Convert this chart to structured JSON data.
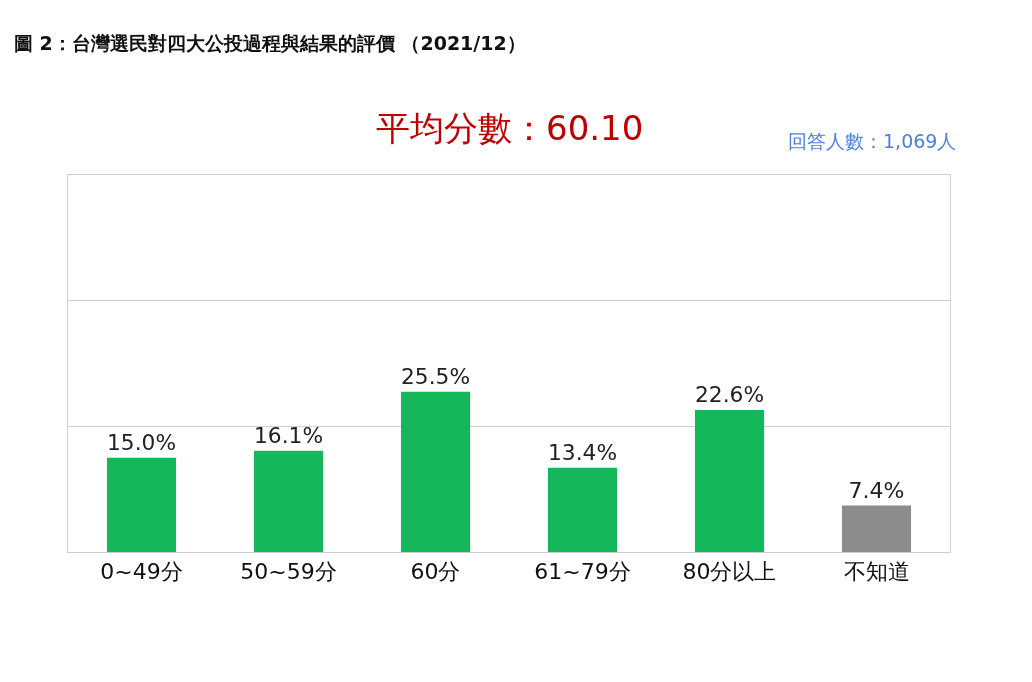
{
  "chart_data": {
    "type": "bar",
    "title": "圖 2：台灣選民對四大公投過程與結果的評價 （2021/12）",
    "subtitle": "平均分數：60.10",
    "annotations": [
      "回答人數：1,069人"
    ],
    "categories": [
      "0~49分",
      "50~59分",
      "60分",
      "61~79分",
      "80分以上",
      "不知道"
    ],
    "values": [
      15.0,
      16.1,
      25.5,
      13.4,
      22.6,
      7.4
    ],
    "colors": [
      "#14b85a",
      "#14b85a",
      "#14b85a",
      "#14b85a",
      "#14b85a",
      "#8c8c8c"
    ],
    "value_labels": [
      "15.0%",
      "16.1%",
      "25.5%",
      "13.4%",
      "22.6%",
      "7.4%"
    ],
    "ylim": [
      0,
      60
    ],
    "yticks": [
      {
        "value": 20,
        "label": null
      },
      {
        "value": 40,
        "label": null
      }
    ],
    "grid": "y",
    "tick_labels": "x",
    "legend": false
  }
}
